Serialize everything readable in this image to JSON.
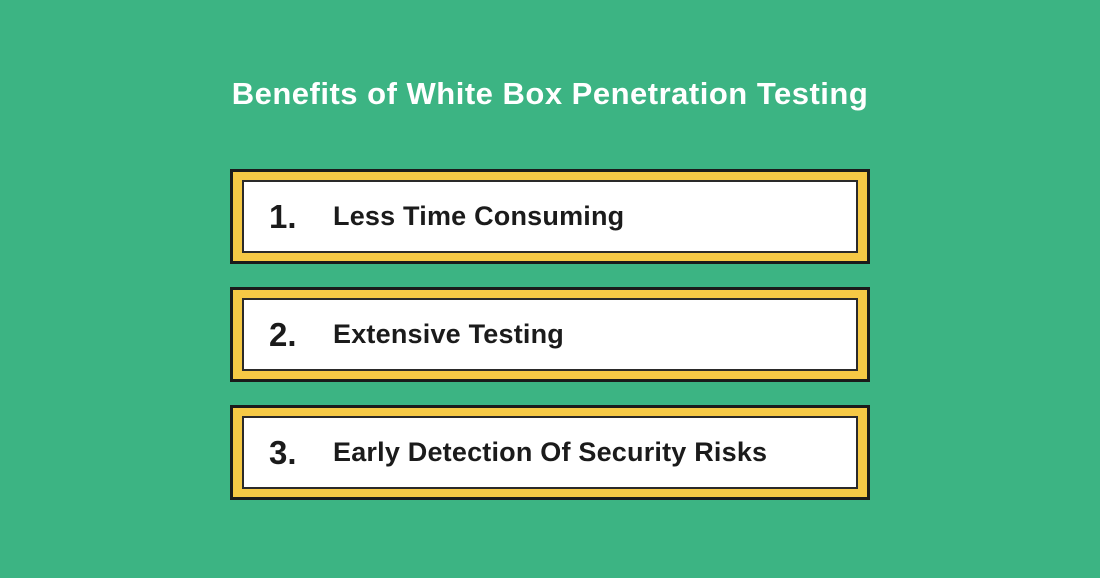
{
  "title": "Benefits of White Box Penetration Testing",
  "benefits": [
    {
      "number": "1.",
      "label": "Less Time Consuming"
    },
    {
      "number": "2.",
      "label": "Extensive Testing"
    },
    {
      "number": "3.",
      "label": "Early Detection Of Security Risks"
    }
  ],
  "colors": {
    "background": "#3CB483",
    "box_border_yellow": "#F6C945",
    "outline_black": "#1b1b1b",
    "box_background": "#ffffff",
    "title_text": "#ffffff",
    "body_text": "#1b1b1b"
  }
}
